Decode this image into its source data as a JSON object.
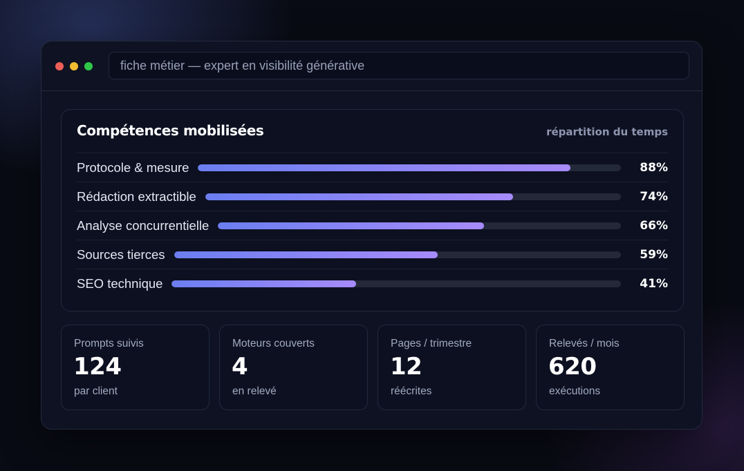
{
  "window": {
    "address": "fiche métier — expert en visibilité générative"
  },
  "skills": {
    "title": "Compétences mobilisées",
    "subtitle": "répartition du temps",
    "items": [
      {
        "label": "Protocole & mesure",
        "value": 88,
        "display": "88%"
      },
      {
        "label": "Rédaction extractible",
        "value": 74,
        "display": "74%"
      },
      {
        "label": "Analyse concurrentielle",
        "value": 66,
        "display": "66%"
      },
      {
        "label": "Sources tierces",
        "value": 59,
        "display": "59%"
      },
      {
        "label": "SEO technique",
        "value": 41,
        "display": "41%"
      }
    ]
  },
  "stats": [
    {
      "label": "Prompts suivis",
      "value": "124",
      "note": "par client"
    },
    {
      "label": "Moteurs couverts",
      "value": "4",
      "note": "en relevé"
    },
    {
      "label": "Pages / trimestre",
      "value": "12",
      "note": "réécrites"
    },
    {
      "label": "Relevés / mois",
      "value": "620",
      "note": "exécutions"
    }
  ],
  "colors": {
    "background": "#090b14",
    "window": "#0e1222",
    "bar_start": "#6b7ef0",
    "bar_end": "#a78bfa",
    "track": "#232939",
    "close": "#ec5f57",
    "minimize": "#f2bd30",
    "maximize": "#2fc64a"
  }
}
